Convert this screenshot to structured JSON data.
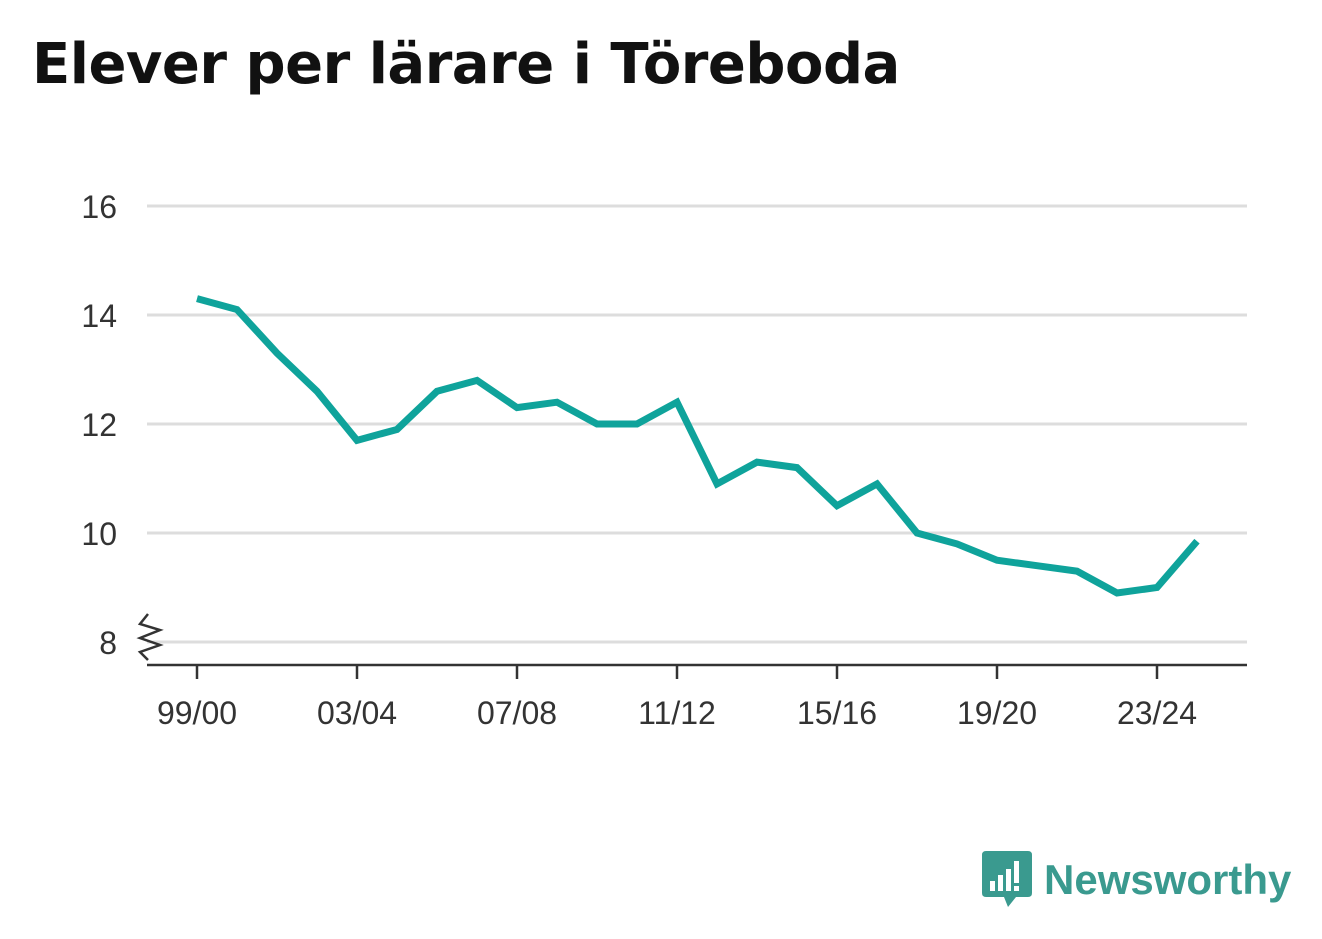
{
  "page": {
    "title": "Elever per lärare i Töreboda",
    "brand": "Newsworthy"
  },
  "colors": {
    "line": "#0fa39b",
    "grid": "#dddddd",
    "axis": "#333333",
    "brand": "#3a9a8f"
  },
  "chart_data": {
    "type": "line",
    "title": "Elever per lärare i Töreboda",
    "xlabel": "",
    "ylabel": "",
    "x": [
      "99/00",
      "00/01",
      "01/02",
      "02/03",
      "03/04",
      "04/05",
      "05/06",
      "06/07",
      "07/08",
      "08/09",
      "09/10",
      "10/11",
      "11/12",
      "12/13",
      "13/14",
      "14/15",
      "15/16",
      "16/17",
      "17/18",
      "18/19",
      "19/20",
      "20/21",
      "21/22",
      "22/23",
      "23/24",
      "24/25"
    ],
    "x_tick_labels": [
      "99/00",
      "03/04",
      "07/08",
      "11/12",
      "15/16",
      "19/20",
      "23/24"
    ],
    "y_tick_labels": [
      "8",
      "10",
      "12",
      "14",
      "16"
    ],
    "ylim": [
      8,
      16
    ],
    "y_axis_break": true,
    "grid": true,
    "series": [
      {
        "values": [
          14.3,
          14.1,
          13.3,
          12.6,
          11.7,
          11.9,
          12.6,
          12.8,
          12.3,
          12.4,
          12.0,
          12.0,
          12.4,
          10.9,
          11.3,
          11.2,
          10.5,
          10.9,
          10.0,
          9.8,
          9.5,
          9.4,
          9.3,
          8.9,
          9.0,
          9.85
        ]
      }
    ]
  }
}
